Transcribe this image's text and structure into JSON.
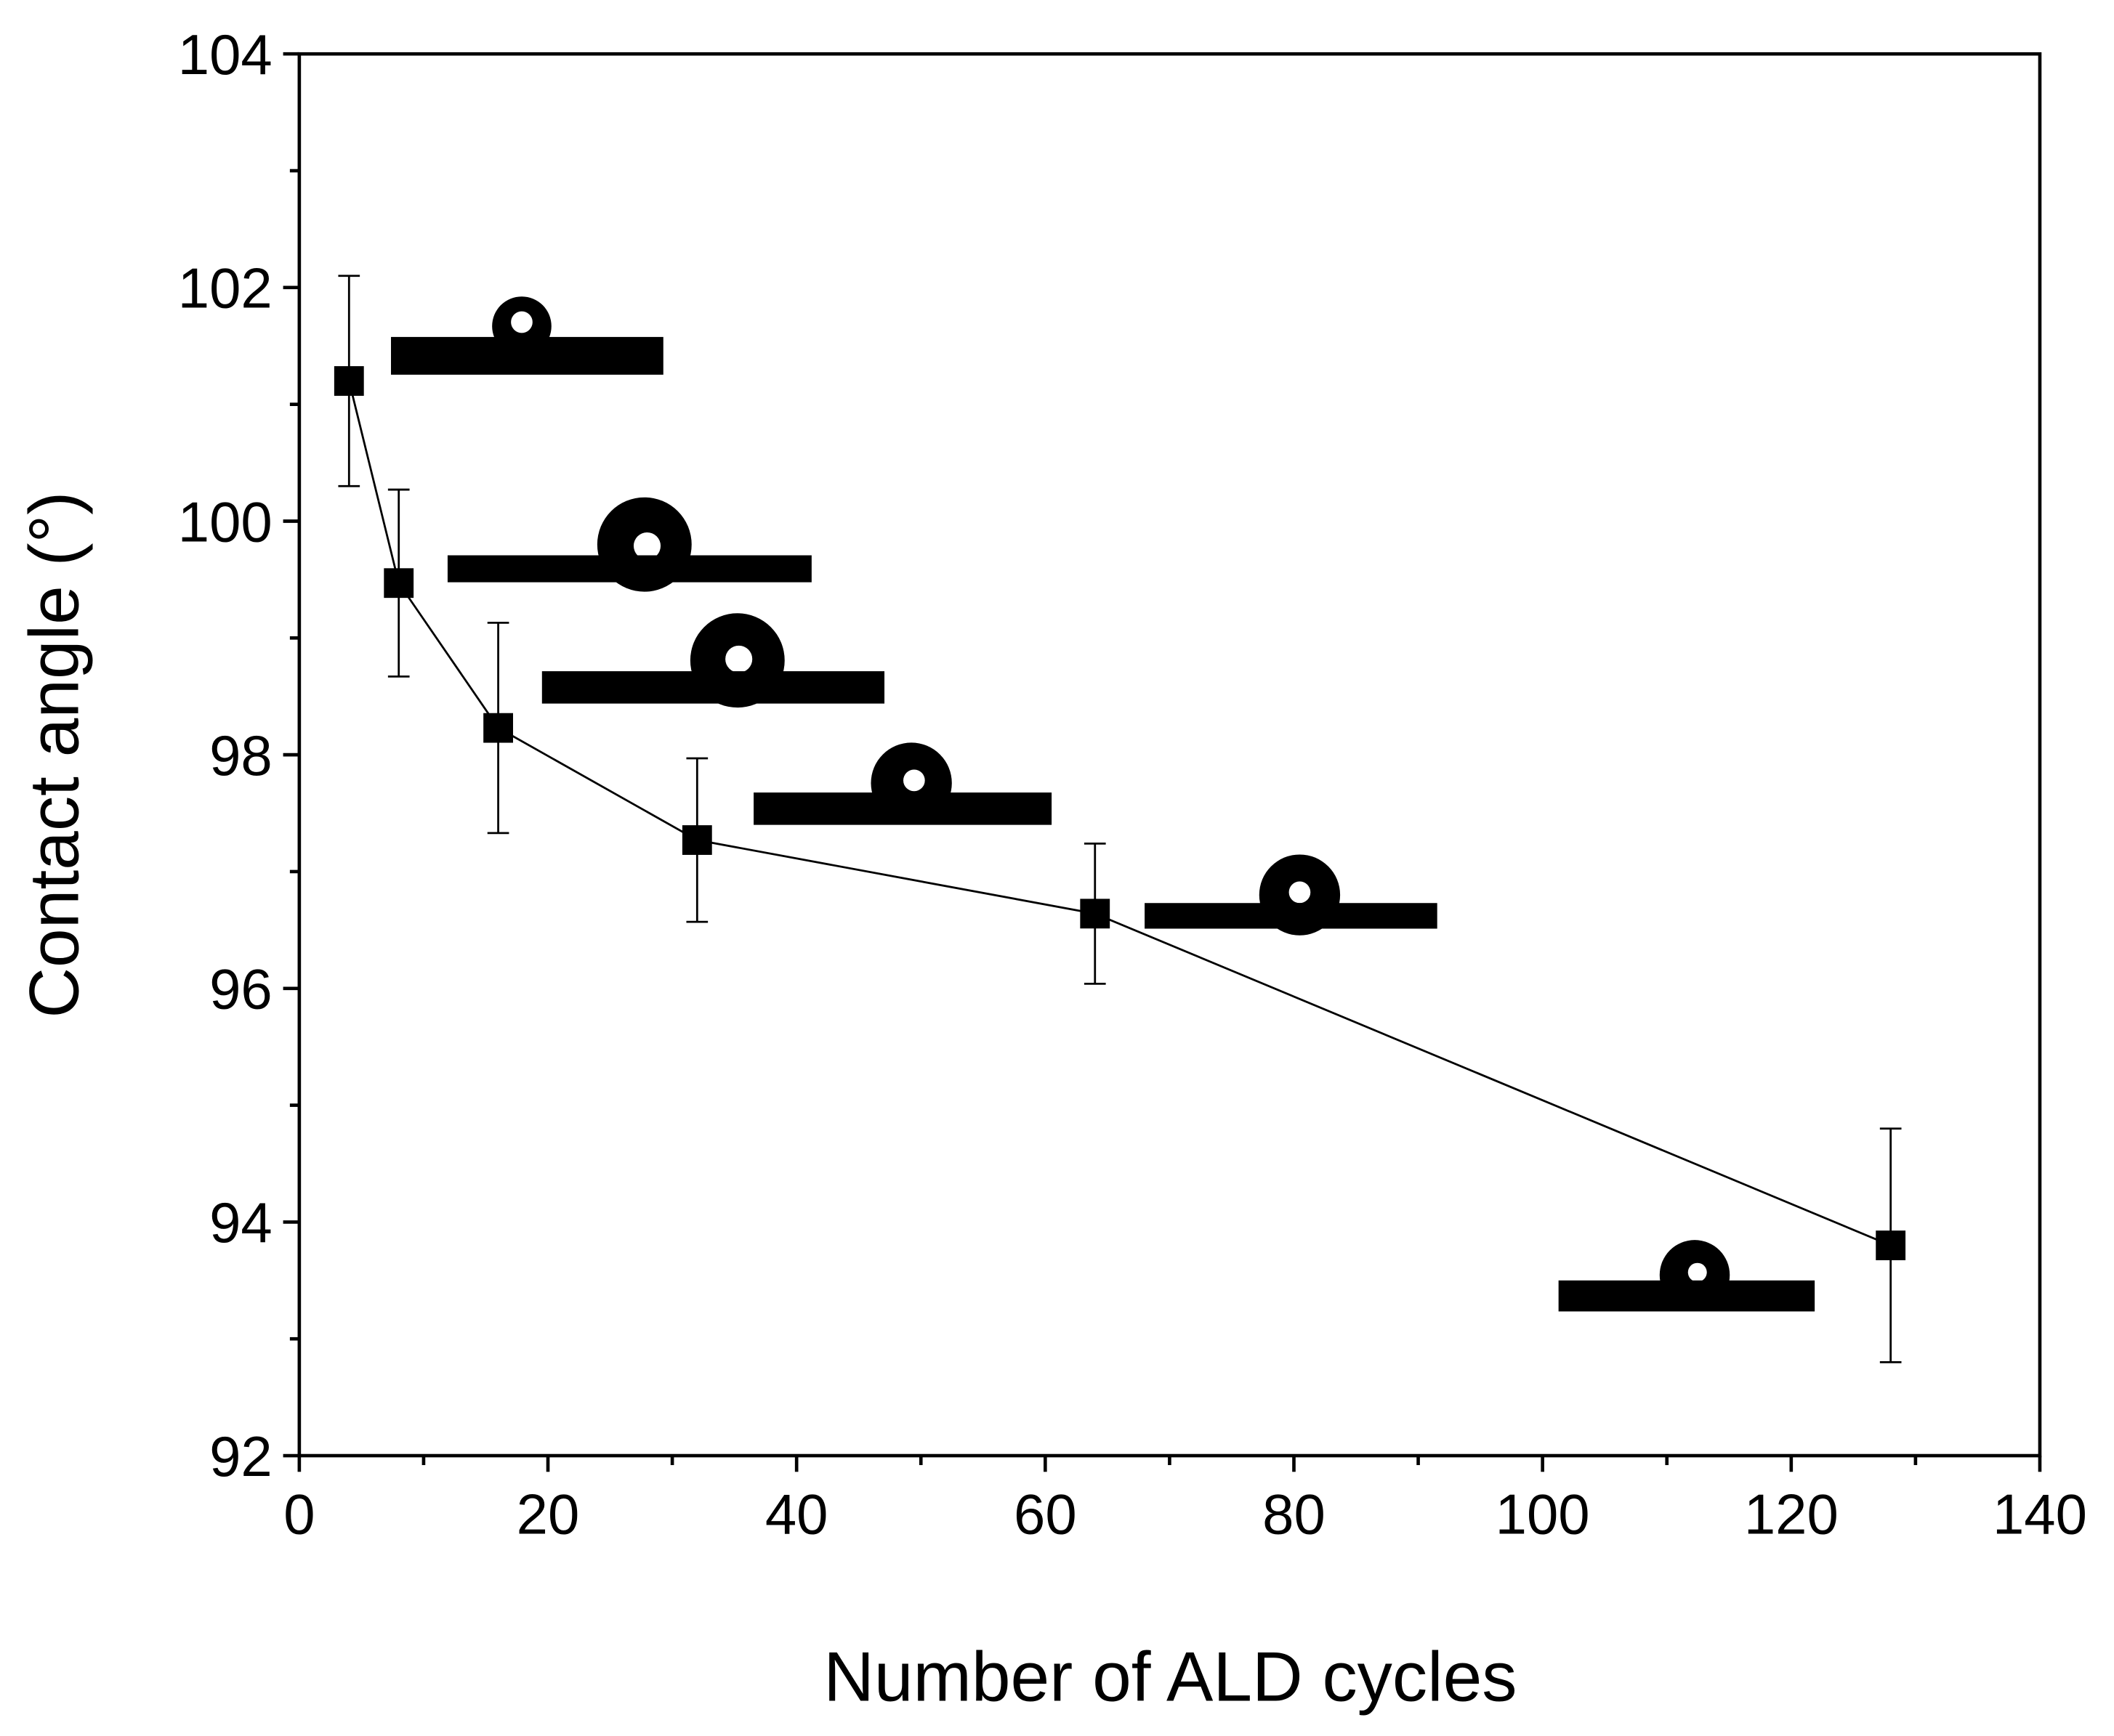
{
  "chart_data": {
    "type": "line",
    "x_label": "Number of ALD cycles",
    "y_label": "Contact angle (°)",
    "x": [
      4,
      8,
      16,
      32,
      64,
      128
    ],
    "series": [
      {
        "color": "#000000",
        "values": [
          101.2,
          99.47,
          98.23,
          97.27,
          96.64,
          93.8
        ],
        "errors": [
          0.9,
          0.8,
          0.9,
          0.7,
          0.6,
          1.0
        ]
      }
    ],
    "xlim": [
      0,
      140
    ],
    "xticks": [
      0,
      20,
      40,
      60,
      80,
      100,
      120,
      140
    ],
    "xminorticks": [
      10,
      30,
      50,
      70,
      90,
      110,
      130
    ],
    "ylim": [
      92,
      104
    ],
    "yticks": [
      92,
      94,
      96,
      98,
      100,
      102,
      104
    ],
    "yminorticks": [
      93,
      95,
      97,
      99,
      101,
      103
    ],
    "grid": false
  }
}
